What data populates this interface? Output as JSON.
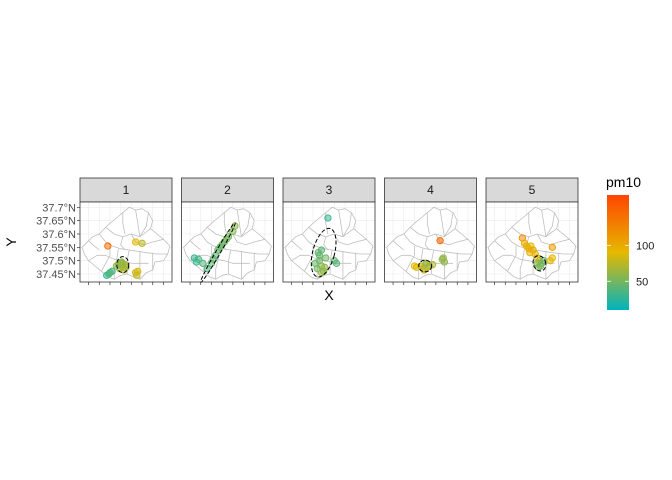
{
  "chart_data": {
    "type": "scatter",
    "subtype": "faceted map with standard-deviation ellipses",
    "xlabel": "X",
    "ylabel": "Y",
    "ylim": [
      37.42,
      37.72
    ],
    "xlim": [
      126.76,
      127.19
    ],
    "y_ticks": [
      37.45,
      37.5,
      37.55,
      37.6,
      37.65,
      37.7
    ],
    "y_tick_labels": [
      "37.45°N",
      "37.5°N",
      "37.55°N",
      "37.6°N",
      "37.65°N",
      "37.7°N"
    ],
    "x_tick_labels_shown": false,
    "grid": true,
    "facets": [
      {
        "label": "1",
        "ellipse": {
          "cx": 126.96,
          "cy": 37.485,
          "rx": 0.028,
          "ry": 0.03,
          "angle": 0
        },
        "points": [
          {
            "x": 126.93,
            "y": 37.48,
            "pm10": 60
          },
          {
            "x": 126.95,
            "y": 37.49,
            "pm10": 65
          },
          {
            "x": 126.96,
            "y": 37.475,
            "pm10": 70
          },
          {
            "x": 126.97,
            "y": 37.485,
            "pm10": 68
          },
          {
            "x": 126.955,
            "y": 37.495,
            "pm10": 55
          },
          {
            "x": 126.945,
            "y": 37.47,
            "pm10": 62
          },
          {
            "x": 126.965,
            "y": 37.465,
            "pm10": 72
          },
          {
            "x": 126.975,
            "y": 37.475,
            "pm10": 66
          },
          {
            "x": 126.94,
            "y": 37.485,
            "pm10": 58
          },
          {
            "x": 126.96,
            "y": 37.49,
            "pm10": 64
          },
          {
            "x": 126.9,
            "y": 37.455,
            "pm10": 30
          },
          {
            "x": 126.885,
            "y": 37.445,
            "pm10": 25
          },
          {
            "x": 126.91,
            "y": 37.46,
            "pm10": 35
          },
          {
            "x": 126.895,
            "y": 37.45,
            "pm10": 40
          },
          {
            "x": 127.02,
            "y": 37.455,
            "pm10": 80
          },
          {
            "x": 127.03,
            "y": 37.46,
            "pm10": 85
          },
          {
            "x": 127.025,
            "y": 37.445,
            "pm10": 78
          },
          {
            "x": 126.89,
            "y": 37.555,
            "pm10": 140
          },
          {
            "x": 127.02,
            "y": 37.57,
            "pm10": 90
          },
          {
            "x": 127.05,
            "y": 37.565,
            "pm10": 75
          }
        ]
      },
      {
        "label": "2",
        "ellipse": {
          "cx": 126.93,
          "cy": 37.53,
          "rx": 0.135,
          "ry": 0.01,
          "angle": -60
        },
        "points": [
          {
            "x": 126.96,
            "y": 37.57,
            "pm10": 45
          },
          {
            "x": 126.98,
            "y": 37.59,
            "pm10": 50
          },
          {
            "x": 126.94,
            "y": 37.55,
            "pm10": 48
          },
          {
            "x": 126.92,
            "y": 37.52,
            "pm10": 40
          },
          {
            "x": 126.9,
            "y": 37.49,
            "pm10": 42
          },
          {
            "x": 126.88,
            "y": 37.47,
            "pm10": 38
          },
          {
            "x": 127.0,
            "y": 37.61,
            "pm10": 55
          },
          {
            "x": 127.01,
            "y": 37.63,
            "pm10": 58
          },
          {
            "x": 126.93,
            "y": 37.54,
            "pm10": 46
          },
          {
            "x": 126.91,
            "y": 37.505,
            "pm10": 44
          },
          {
            "x": 126.82,
            "y": 37.51,
            "pm10": 30
          },
          {
            "x": 126.83,
            "y": 37.495,
            "pm10": 28
          },
          {
            "x": 126.84,
            "y": 37.505,
            "pm10": 35
          },
          {
            "x": 126.86,
            "y": 37.49,
            "pm10": 38
          },
          {
            "x": 126.95,
            "y": 37.56,
            "pm10": 47
          },
          {
            "x": 126.97,
            "y": 37.58,
            "pm10": 52
          }
        ]
      },
      {
        "label": "3",
        "ellipse": {
          "cx": 126.95,
          "cy": 37.53,
          "rx": 0.05,
          "ry": 0.095,
          "angle": 15
        },
        "points": [
          {
            "x": 126.93,
            "y": 37.5,
            "pm10": 48
          },
          {
            "x": 126.94,
            "y": 37.48,
            "pm10": 55
          },
          {
            "x": 126.92,
            "y": 37.47,
            "pm10": 50
          },
          {
            "x": 126.95,
            "y": 37.46,
            "pm10": 58
          },
          {
            "x": 126.93,
            "y": 37.52,
            "pm10": 45
          },
          {
            "x": 126.94,
            "y": 37.54,
            "pm10": 42
          },
          {
            "x": 126.96,
            "y": 37.51,
            "pm10": 50
          },
          {
            "x": 126.91,
            "y": 37.49,
            "pm10": 46
          },
          {
            "x": 127.0,
            "y": 37.5,
            "pm10": 44
          },
          {
            "x": 127.01,
            "y": 37.49,
            "pm10": 40
          },
          {
            "x": 126.97,
            "y": 37.66,
            "pm10": 30
          },
          {
            "x": 126.94,
            "y": 37.455,
            "pm10": 60
          },
          {
            "x": 126.955,
            "y": 37.475,
            "pm10": 62
          },
          {
            "x": 126.925,
            "y": 37.53,
            "pm10": 44
          }
        ]
      },
      {
        "label": "4",
        "ellipse": {
          "cx": 126.95,
          "cy": 37.48,
          "rx": 0.03,
          "ry": 0.022,
          "angle": 0
        },
        "points": [
          {
            "x": 126.93,
            "y": 37.48,
            "pm10": 75
          },
          {
            "x": 126.95,
            "y": 37.485,
            "pm10": 80
          },
          {
            "x": 126.96,
            "y": 37.475,
            "pm10": 70
          },
          {
            "x": 126.94,
            "y": 37.47,
            "pm10": 65
          },
          {
            "x": 126.97,
            "y": 37.48,
            "pm10": 72
          },
          {
            "x": 126.955,
            "y": 37.49,
            "pm10": 60
          },
          {
            "x": 126.91,
            "y": 37.475,
            "pm10": 85
          },
          {
            "x": 126.9,
            "y": 37.48,
            "pm10": 90
          },
          {
            "x": 126.945,
            "y": 37.465,
            "pm10": 78
          },
          {
            "x": 126.985,
            "y": 37.485,
            "pm10": 68
          },
          {
            "x": 127.02,
            "y": 37.575,
            "pm10": 150
          },
          {
            "x": 127.03,
            "y": 37.505,
            "pm10": 60
          },
          {
            "x": 127.04,
            "y": 37.495,
            "pm10": 58
          },
          {
            "x": 127.035,
            "y": 37.51,
            "pm10": 62
          }
        ]
      },
      {
        "label": "5",
        "ellipse": {
          "cx": 127.01,
          "cy": 37.49,
          "rx": 0.028,
          "ry": 0.03,
          "angle": -20
        },
        "points": [
          {
            "x": 126.95,
            "y": 37.555,
            "pm10": 95
          },
          {
            "x": 126.96,
            "y": 37.545,
            "pm10": 100
          },
          {
            "x": 126.97,
            "y": 37.555,
            "pm10": 90
          },
          {
            "x": 126.98,
            "y": 37.54,
            "pm10": 105
          },
          {
            "x": 126.965,
            "y": 37.53,
            "pm10": 98
          },
          {
            "x": 126.99,
            "y": 37.525,
            "pm10": 92
          },
          {
            "x": 127.0,
            "y": 37.51,
            "pm10": 85
          },
          {
            "x": 127.01,
            "y": 37.5,
            "pm10": 80
          },
          {
            "x": 127.0,
            "y": 37.49,
            "pm10": 60
          },
          {
            "x": 127.015,
            "y": 37.48,
            "pm10": 50
          },
          {
            "x": 127.02,
            "y": 37.49,
            "pm10": 55
          },
          {
            "x": 127.005,
            "y": 37.475,
            "pm10": 52
          },
          {
            "x": 127.03,
            "y": 37.5,
            "pm10": 45
          },
          {
            "x": 126.93,
            "y": 37.585,
            "pm10": 120
          },
          {
            "x": 127.06,
            "y": 37.5,
            "pm10": 85
          },
          {
            "x": 127.07,
            "y": 37.51,
            "pm10": 90
          },
          {
            "x": 127.07,
            "y": 37.55,
            "pm10": 110
          },
          {
            "x": 126.94,
            "y": 37.565,
            "pm10": 100
          }
        ]
      }
    ],
    "legend": {
      "title": "pm10",
      "type": "colorbar",
      "position": "right",
      "range": [
        10,
        170
      ],
      "ticks": [
        50,
        100
      ],
      "tick_labels": [
        "50",
        "100"
      ],
      "colors": [
        "#00b3bf",
        "#e6b800",
        "#ff4500"
      ]
    },
    "colors": {
      "strip_fill": "#d9d9d9",
      "panel_border": "#333333",
      "grid": "#ebebeb",
      "map_outline": "#bfbfbf",
      "ellipse": "#000000"
    }
  }
}
